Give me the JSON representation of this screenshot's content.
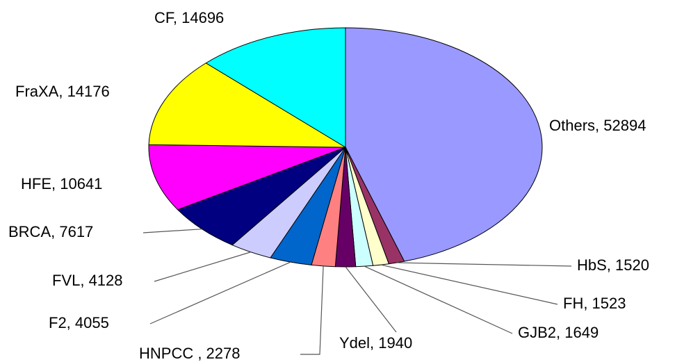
{
  "chart_data": {
    "type": "pie",
    "labels": [
      "Others, 52894",
      "HbS, 1520",
      "FH, 1523",
      "GJB2, 1649",
      "Ydel, 1940",
      "HNPCC , 2278",
      "F2, 4055",
      "FVL, 4128",
      "BRCA, 7617",
      "HFE, 10641",
      "FraXA, 14176",
      "CF, 14696"
    ],
    "values": [
      52894,
      1520,
      1523,
      1649,
      1940,
      2278,
      4055,
      4128,
      7617,
      10641,
      14176,
      14696
    ],
    "colors": [
      "#9999ff",
      "#993366",
      "#ffffcc",
      "#ccffff",
      "#660066",
      "#ff8080",
      "#0066cc",
      "#ccccff",
      "#000080",
      "#ff00ff",
      "#ffff00",
      "#00ffff"
    ]
  }
}
